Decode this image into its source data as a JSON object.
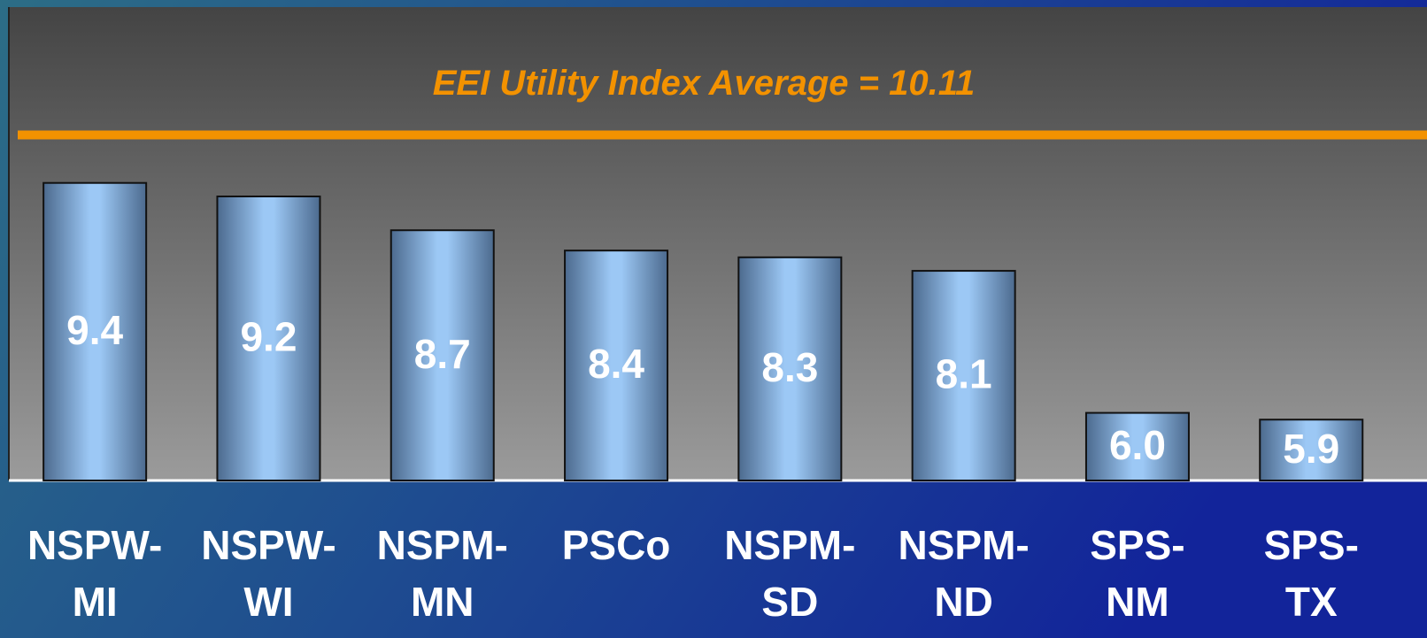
{
  "chart_data": {
    "type": "bar",
    "categories": [
      "NSPW-MI",
      "NSPW-WI",
      "NSPM-MN",
      "PSCo",
      "NSPM-SD",
      "NSPM-ND",
      "SPS-NM",
      "SPS-TX"
    ],
    "values": [
      9.4,
      9.2,
      8.7,
      8.4,
      8.3,
      8.1,
      6.0,
      5.9
    ],
    "value_labels": [
      "9.4",
      "9.2",
      "8.7",
      "8.4",
      "8.3",
      "8.1",
      "6.0",
      "5.9"
    ],
    "color": "#9cc8f5",
    "ylim": [
      5,
      12
    ],
    "reference_line": {
      "value": 10.11,
      "label": "EEI Utility Index Average = 10.11",
      "color": "#f39200"
    }
  }
}
